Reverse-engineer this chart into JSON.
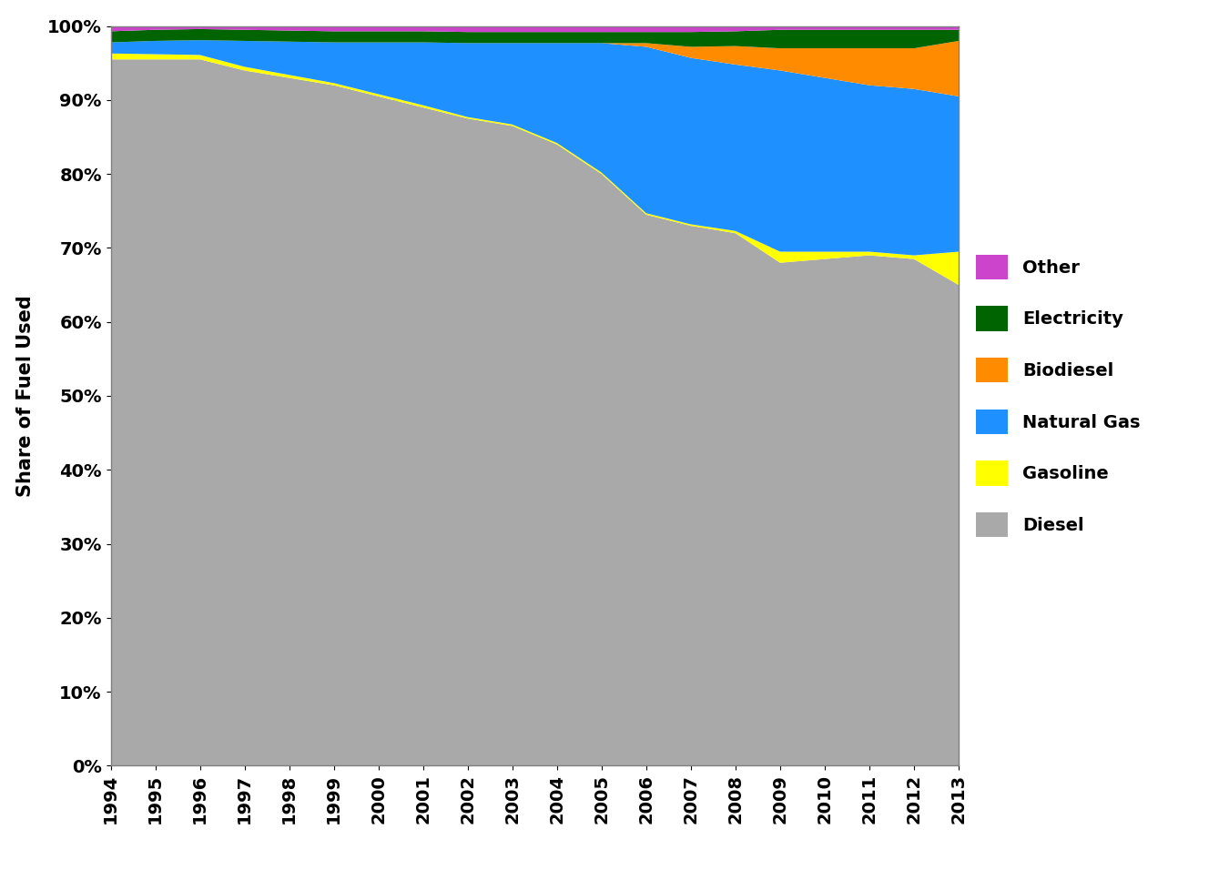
{
  "years": [
    1994,
    1995,
    1996,
    1997,
    1998,
    1999,
    2000,
    2001,
    2002,
    2003,
    2004,
    2005,
    2006,
    2007,
    2008,
    2009,
    2010,
    2011,
    2012,
    2013
  ],
  "diesel": [
    95.5,
    95.5,
    95.5,
    94.0,
    93.0,
    92.0,
    90.5,
    89.0,
    87.5,
    86.5,
    84.0,
    80.0,
    74.5,
    73.0,
    72.0,
    68.0,
    68.5,
    69.0,
    68.5,
    65.0
  ],
  "gasoline": [
    0.8,
    0.7,
    0.6,
    0.5,
    0.4,
    0.3,
    0.3,
    0.3,
    0.2,
    0.2,
    0.2,
    0.2,
    0.2,
    0.2,
    0.3,
    1.5,
    1.0,
    0.5,
    0.5,
    4.5
  ],
  "natural_gas": [
    1.5,
    1.8,
    2.0,
    3.5,
    4.5,
    5.5,
    7.0,
    8.5,
    10.0,
    11.0,
    13.5,
    17.5,
    22.5,
    22.5,
    22.5,
    24.5,
    23.5,
    22.5,
    22.5,
    21.0
  ],
  "biodiesel": [
    0.0,
    0.0,
    0.0,
    0.0,
    0.0,
    0.0,
    0.0,
    0.0,
    0.0,
    0.0,
    0.0,
    0.0,
    0.5,
    1.5,
    2.5,
    3.0,
    4.0,
    5.0,
    5.5,
    7.5
  ],
  "electricity": [
    1.5,
    1.5,
    1.5,
    1.5,
    1.5,
    1.5,
    1.5,
    1.5,
    1.5,
    1.5,
    1.5,
    1.5,
    1.5,
    2.0,
    2.0,
    2.5,
    2.5,
    2.5,
    2.5,
    1.5
  ],
  "other": [
    0.7,
    0.5,
    0.4,
    0.5,
    0.6,
    0.7,
    0.7,
    0.7,
    0.8,
    0.8,
    0.8,
    0.8,
    0.8,
    0.8,
    0.7,
    0.5,
    0.5,
    0.5,
    0.5,
    0.5
  ],
  "colors": {
    "diesel": "#a9a9a9",
    "gasoline": "#ffff00",
    "natural_gas": "#1e90ff",
    "biodiesel": "#ff8c00",
    "electricity": "#006400",
    "other": "#cc44cc"
  },
  "legend_labels": {
    "diesel": "Diesel",
    "gasoline": "Gasoline",
    "natural_gas": "Natural Gas",
    "biodiesel": "Biodiesel",
    "electricity": "Electricity",
    "other": "Other"
  },
  "ylabel": "Share of Fuel Used",
  "background_color": "#ffffff"
}
